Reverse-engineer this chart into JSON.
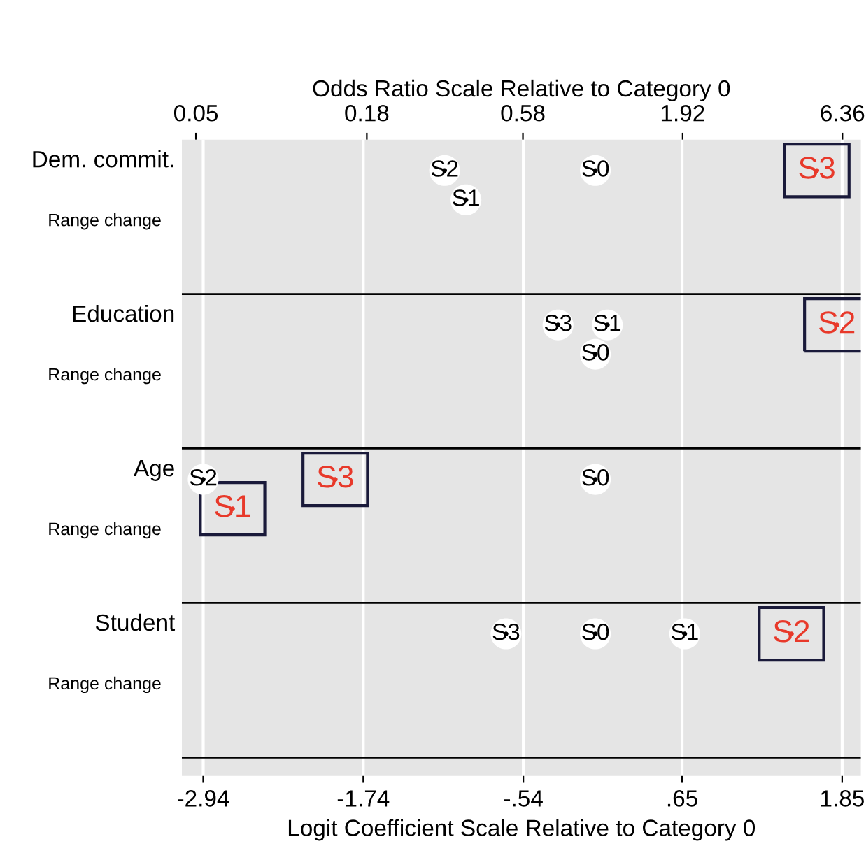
{
  "chart_data": {
    "type": "scatter",
    "orientation": "horizontal",
    "xlabel": "Logit Coefficient Scale Relative to Category 0",
    "x2label": "Odds Ratio Scale Relative to Category 0",
    "categories": [
      "Dem. commit.",
      "Education",
      "Age",
      "Student"
    ],
    "series": [
      {
        "name": "S0",
        "color": "#000000",
        "values": [
          0.0,
          0.0,
          0.0,
          0.0
        ],
        "colors": [
          "#000000",
          "#000000",
          "#000000",
          "#000000"
        ]
      },
      {
        "name": "S1",
        "color": "#000000",
        "values": [
          -0.97,
          0.09,
          -2.72,
          0.67
        ],
        "colors": [
          "#000000",
          "#000000",
          "#e8392a",
          "#000000"
        ]
      },
      {
        "name": "S2",
        "color": "#000000",
        "values": [
          -1.13,
          1.81,
          -2.94,
          1.47
        ],
        "colors": [
          "#000000",
          "#e8392a",
          "#000000",
          "#e8392a"
        ]
      },
      {
        "name": "S3",
        "color": "#000000",
        "values": [
          1.66,
          -0.28,
          -1.95,
          -0.67
        ],
        "colors": [
          "#e8392a",
          "#000000",
          "#e8392a",
          "#000000"
        ]
      }
    ],
    "annotations": [
      "Range change",
      "Range change",
      "Range change",
      "Range change"
    ],
    "xlim": [
      -3.1,
      1.99
    ],
    "xticks": [
      -2.94,
      -1.74,
      {
        "value": -0.54,
        "label": "-.54"
      },
      {
        "value": 0.65,
        "label": ".65"
      },
      1.85
    ],
    "x2lim": [
      0.045,
      7.3
    ],
    "x2ticks": [
      0.05,
      0.18,
      0.58,
      1.92,
      6.36
    ],
    "log": "x2",
    "grid": "x",
    "legend": false
  }
}
